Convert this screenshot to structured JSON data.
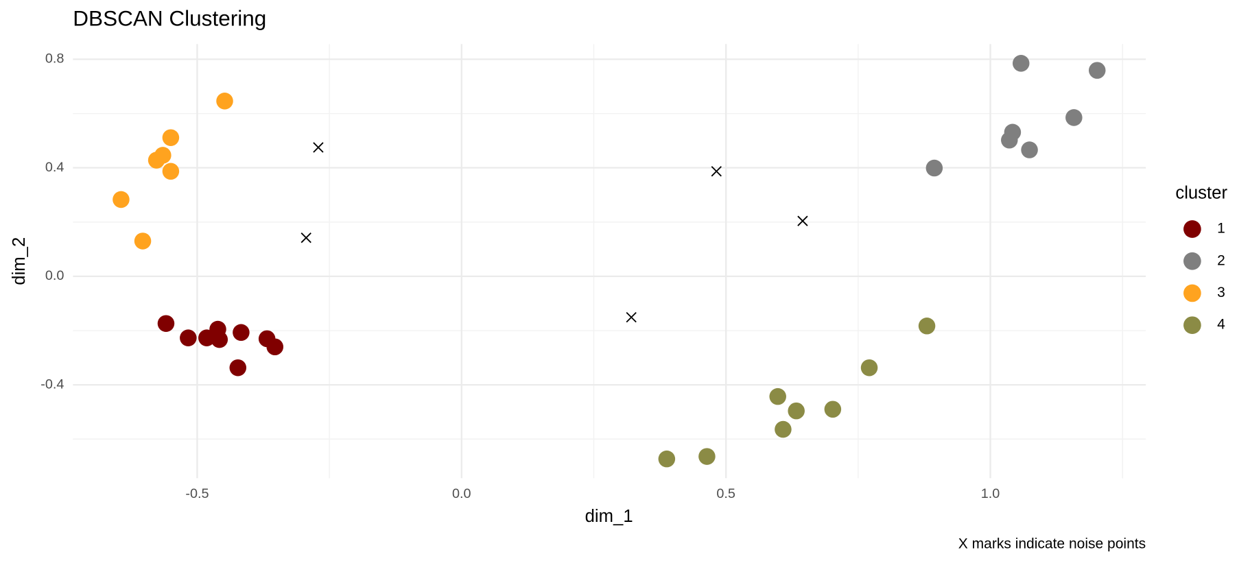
{
  "chart_data": {
    "type": "scatter",
    "title": "DBSCAN Clustering",
    "x_label": "dim_1",
    "y_label": "dim_2",
    "legend_title": "cluster",
    "caption": "X marks indicate noise points",
    "xlim": [
      -0.735,
      1.294
    ],
    "ylim": [
      -0.744,
      0.856
    ],
    "xticks": [
      -0.5,
      {
        "value": 0,
        "label": "0.0"
      },
      0.5,
      {
        "value": 1,
        "label": "1.0"
      }
    ],
    "yticks": [
      -0.4,
      {
        "value": 0,
        "label": "0.0"
      },
      0.4,
      0.8
    ],
    "grid": true,
    "series": [
      {
        "name": "1",
        "color": "#800000",
        "x": [
          -0.559,
          -0.517,
          -0.482,
          -0.461,
          -0.458,
          -0.417,
          -0.368,
          -0.353,
          -0.423
        ],
        "y": [
          -0.174,
          -0.227,
          -0.227,
          -0.195,
          -0.233,
          -0.207,
          -0.23,
          -0.26,
          -0.337
        ]
      },
      {
        "name": "2",
        "color": "#7f7f7f",
        "x": [
          1.058,
          1.202,
          1.158,
          1.042,
          1.036,
          1.074,
          0.894
        ],
        "y": [
          0.785,
          0.759,
          0.585,
          0.531,
          0.502,
          0.466,
          0.399
        ]
      },
      {
        "name": "3",
        "color": "#ffa31f",
        "x": [
          -0.448,
          -0.55,
          -0.565,
          -0.577,
          -0.55,
          -0.644,
          -0.603
        ],
        "y": [
          0.646,
          0.511,
          0.446,
          0.428,
          0.387,
          0.283,
          0.13
        ]
      },
      {
        "name": "4",
        "color": "#8b8b45",
        "x": [
          0.88,
          0.771,
          0.598,
          0.633,
          0.702,
          0.608,
          0.464,
          0.388
        ],
        "y": [
          -0.183,
          -0.337,
          -0.443,
          -0.496,
          -0.49,
          -0.564,
          -0.664,
          -0.673
        ]
      }
    ],
    "noise": {
      "color": "#000000",
      "x": [
        -0.271,
        -0.294,
        0.482,
        0.645,
        0.321
      ],
      "y": [
        0.475,
        0.142,
        0.387,
        0.204,
        -0.151
      ]
    }
  }
}
